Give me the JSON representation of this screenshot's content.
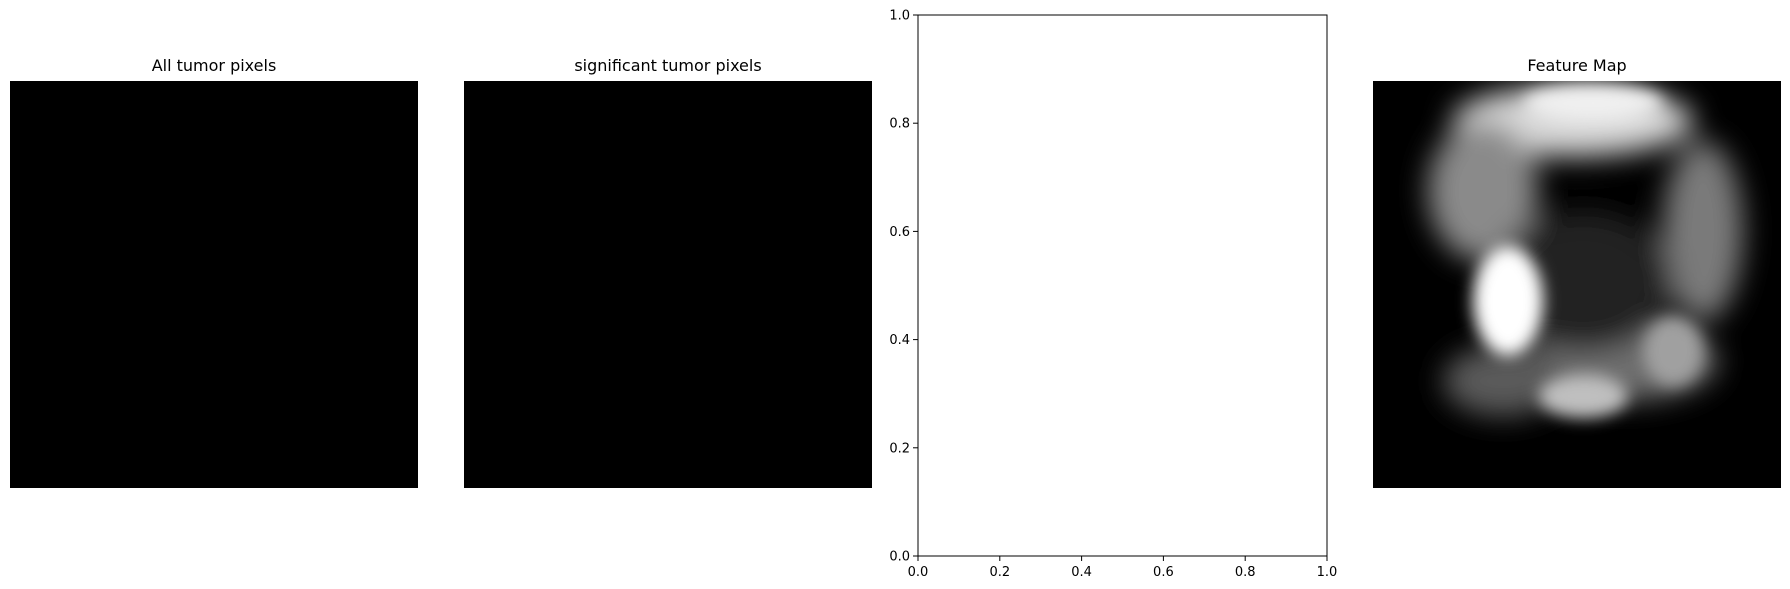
{
  "panels": [
    {
      "title": "All tumor pixels"
    },
    {
      "title": "significant tumor pixels"
    },
    {
      "title": ""
    },
    {
      "title": "Feature Map"
    }
  ],
  "chart_data": {
    "type": "scatter",
    "title": "",
    "xlabel": "",
    "ylabel": "",
    "xlim": [
      0,
      1
    ],
    "ylim": [
      0,
      1
    ],
    "xticks": [
      "0.0",
      "0.2",
      "0.4",
      "0.6",
      "0.8",
      "1.0"
    ],
    "yticks": [
      "0.0",
      "0.2",
      "0.4",
      "0.6",
      "0.8",
      "1.0"
    ],
    "series": [],
    "grid": false
  },
  "colors": {
    "image_background": "#000000",
    "axes": "#000000"
  }
}
